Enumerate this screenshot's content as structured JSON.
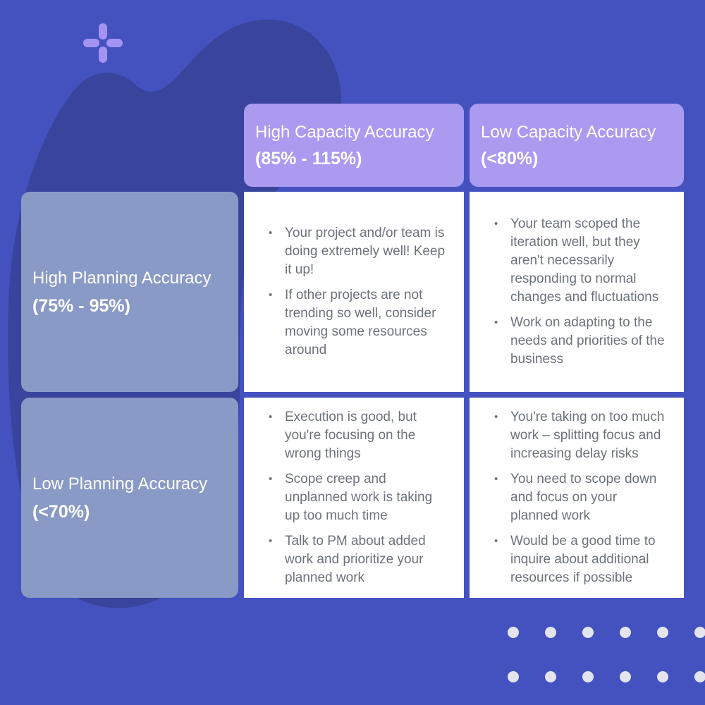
{
  "colors": {
    "page_background": "#4452C0",
    "blob": "#39449C",
    "plus_icon": "#A493F2",
    "dot": "#E4E4EE",
    "column_header_bg": "#AA9AF0",
    "row_header_bg": "#8A9AC6",
    "cell_bg": "#FFFFFF",
    "header_text": "#FFFFFF",
    "cell_text": "#6D727A"
  },
  "decorations": {
    "plus_icon": "plus-sparkle",
    "dot_grid": {
      "rows": 2,
      "columns": 6
    }
  },
  "matrix": {
    "column_headers": [
      {
        "title": "High Capacity Accuracy",
        "range": "(85% - 115%)"
      },
      {
        "title": "Low Capacity Accuracy",
        "range": "(<80%)"
      }
    ],
    "row_headers": [
      {
        "title": "High Planning Accuracy",
        "range": "(75% - 95%)"
      },
      {
        "title": "Low Planning Accuracy",
        "range": "(<70%)"
      }
    ],
    "cells": {
      "r0c0": {
        "bullets": [
          "Your project and/or team is doing extremely well! Keep it up!",
          "If other projects are not trending so well, consider moving some resources around"
        ]
      },
      "r0c1": {
        "bullets": [
          "Your team scoped the iteration well, but they aren't necessarily responding to normal changes and fluctuations",
          "Work on adapting to the needs and priorities of the business"
        ]
      },
      "r1c0": {
        "bullets": [
          "Execution is good, but you're focusing on the wrong things",
          "Scope creep and unplanned work is taking up too much time",
          "Talk to PM about added work and prioritize your planned work"
        ]
      },
      "r1c1": {
        "bullets": [
          "You're taking on too much work – splitting focus and increasing delay risks",
          "You need to scope down and focus on your planned work",
          "Would be a good time to inquire about additional resources if possible"
        ]
      }
    }
  }
}
